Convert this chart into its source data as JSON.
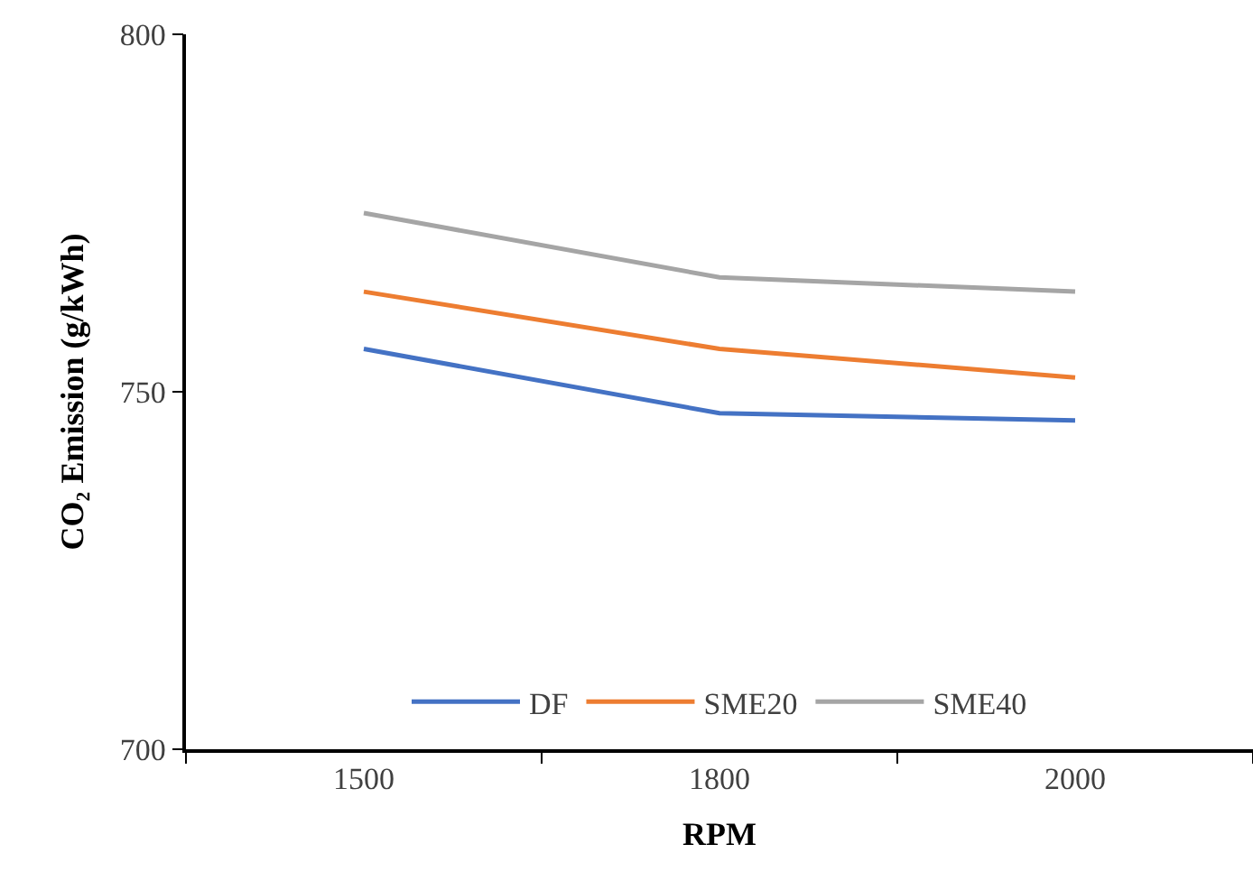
{
  "chart_data": {
    "type": "line",
    "xlabel": "RPM",
    "ylabel": "CO₂ Emission (g/kWh)",
    "categories": [
      "1500",
      "1800",
      "2000"
    ],
    "series": [
      {
        "name": "DF",
        "color": "#4472c4",
        "values": [
          756,
          747,
          746
        ]
      },
      {
        "name": "SME20",
        "color": "#ed7d31",
        "values": [
          764,
          756,
          752
        ]
      },
      {
        "name": "SME40",
        "color": "#a5a5a5",
        "values": [
          775,
          766,
          764
        ]
      }
    ],
    "ylim": [
      700,
      800
    ],
    "yticks": [
      700,
      750,
      800
    ],
    "legend": "bottom",
    "marker": "none",
    "line_style": "solid"
  }
}
